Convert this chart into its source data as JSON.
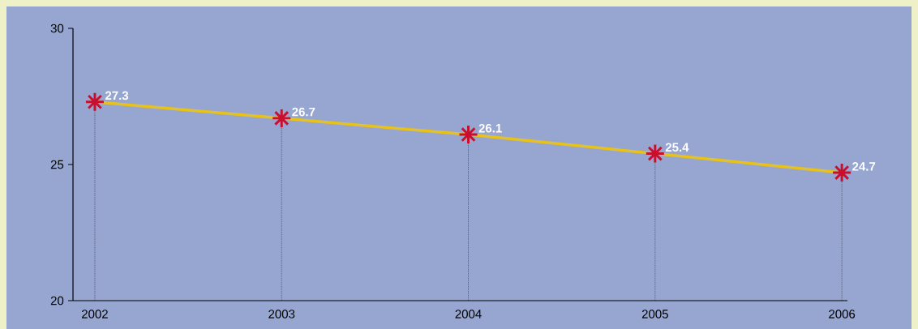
{
  "chart_data": {
    "type": "line",
    "categories": [
      "2002",
      "2003",
      "2004",
      "2005",
      "2006"
    ],
    "series": [
      {
        "color": "#e8c21c",
        "values": [
          27.3,
          26.7,
          26.1,
          25.4,
          24.7
        ]
      }
    ],
    "ylim": [
      20,
      30
    ],
    "yticks": [
      20,
      25,
      30
    ],
    "marker": "cross",
    "line_style": "solid",
    "data_labels": true
  }
}
